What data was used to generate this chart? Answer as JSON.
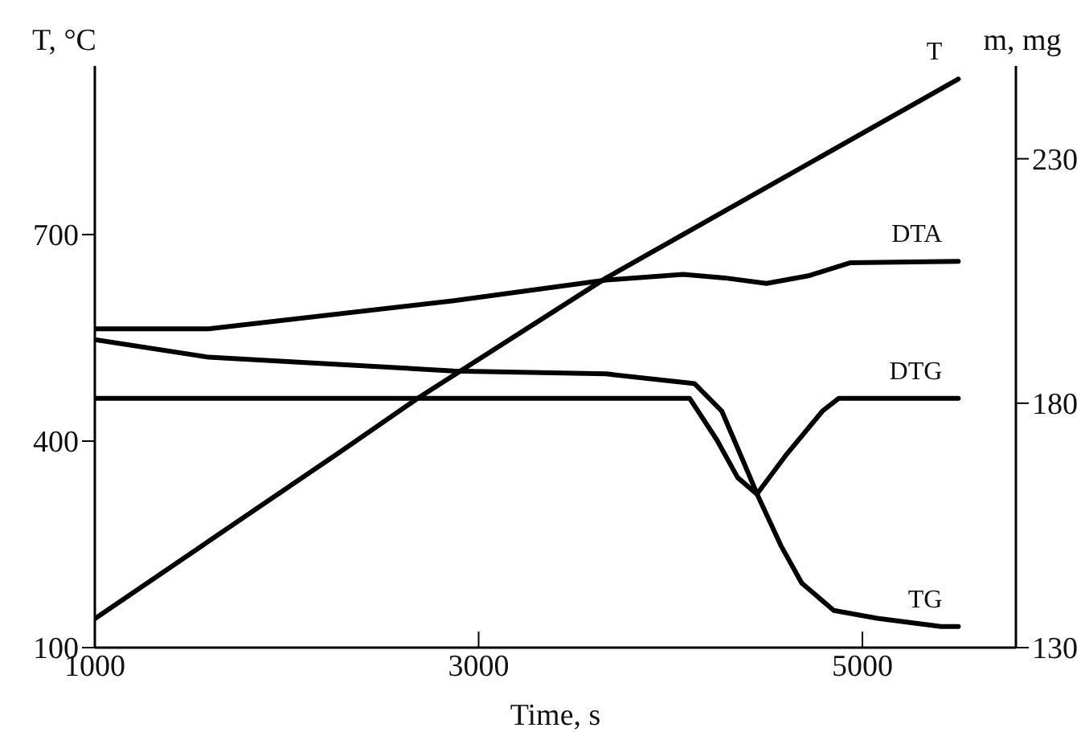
{
  "chart_data": {
    "type": "line",
    "xlabel": "Time, s",
    "ylabel": "T, °C",
    "y2label": "m, mg",
    "xlim": [
      1000,
      5800
    ],
    "xticks": [
      1000,
      3000,
      5000
    ],
    "ylim": [
      100,
      945
    ],
    "yticks": [
      100,
      400,
      700
    ],
    "y2lim": [
      130,
      249
    ],
    "y2ticks": [
      130,
      180,
      230
    ],
    "grid": false,
    "legend": false,
    "marker": "none",
    "line_style": "solid",
    "series": [
      {
        "name": "T",
        "color": "#000000",
        "x": [
          1000,
          2287,
          2687,
          3665,
          5500
        ],
        "values": [
          142,
          386,
          463,
          637,
          926
        ]
      },
      {
        "name": "DTA",
        "color": "#000000",
        "x": [
          1000,
          1593,
          2871,
          3665,
          4066,
          4283,
          4500,
          4718,
          4935,
          5500
        ],
        "values": [
          563,
          563,
          604,
          634,
          642,
          637,
          629,
          640,
          659,
          661
        ]
      },
      {
        "name": "DTG",
        "color": "#000000",
        "x": [
          1000,
          4100,
          4241,
          4350,
          4450,
          4600,
          4793,
          4876,
          5500
        ],
        "values": [
          462,
          462,
          402,
          347,
          323,
          379,
          444,
          462,
          462
        ]
      },
      {
        "name": "TG",
        "color": "#000000",
        "axis": "y2",
        "x": [
          1000,
          1593,
          2871,
          3665,
          4100,
          4125,
          4267,
          4375,
          4458,
          4575,
          4684,
          4851,
          5077,
          5410,
          5500
        ],
        "values": [
          193.0,
          189.4,
          186.6,
          186.0,
          184.1,
          184.0,
          178.4,
          168.5,
          160.8,
          150.9,
          143.2,
          137.6,
          136.0,
          134.3,
          134.3
        ]
      }
    ]
  }
}
